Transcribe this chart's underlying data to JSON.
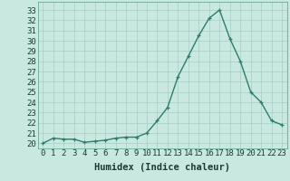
{
  "x": [
    0,
    1,
    2,
    3,
    4,
    5,
    6,
    7,
    8,
    9,
    10,
    11,
    12,
    13,
    14,
    15,
    16,
    17,
    18,
    19,
    20,
    21,
    22,
    23
  ],
  "y": [
    20.0,
    20.5,
    20.4,
    20.4,
    20.1,
    20.2,
    20.3,
    20.5,
    20.6,
    20.6,
    21.0,
    22.2,
    23.5,
    26.5,
    28.5,
    30.5,
    32.2,
    33.0,
    30.2,
    28.0,
    25.0,
    24.0,
    22.2,
    21.8
  ],
  "line_color": "#2e7d6e",
  "marker": "+",
  "marker_size": 3.5,
  "line_width": 1.0,
  "bg_color": "#c8e8e0",
  "grid_color": "#a8ccc4",
  "xlabel": "Humidex (Indice chaleur)",
  "ylabel_ticks": [
    20,
    21,
    22,
    23,
    24,
    25,
    26,
    27,
    28,
    29,
    30,
    31,
    32,
    33
  ],
  "ylim": [
    19.5,
    33.8
  ],
  "xlim": [
    -0.5,
    23.5
  ],
  "axis_fontsize": 6.5,
  "xlabel_fontsize": 7.5
}
